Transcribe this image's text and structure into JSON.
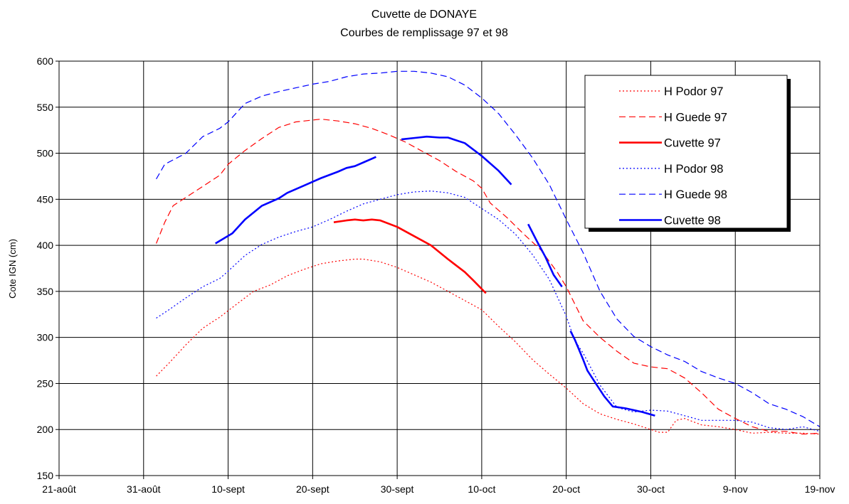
{
  "chart_data": {
    "type": "line",
    "title": "Cuvette de DONAYE",
    "subtitle": "Courbes de remplissage 97 et 98",
    "xlabel": "",
    "ylabel": "Cote IGN (cm)",
    "ylim": [
      150,
      600
    ],
    "yticks": [
      150,
      200,
      250,
      300,
      350,
      400,
      450,
      500,
      550,
      600
    ],
    "xlim": [
      0,
      90
    ],
    "xticks": [
      {
        "x": 0,
        "label": "21-août"
      },
      {
        "x": 10,
        "label": "31-août"
      },
      {
        "x": 20,
        "label": "10-sept"
      },
      {
        "x": 30,
        "label": "20-sept"
      },
      {
        "x": 40,
        "label": "30-sept"
      },
      {
        "x": 50,
        "label": "10-oct"
      },
      {
        "x": 60,
        "label": "20-oct"
      },
      {
        "x": 70,
        "label": "30-oct"
      },
      {
        "x": 80,
        "label": "9-nov"
      },
      {
        "x": 90,
        "label": "19-nov"
      }
    ],
    "grid": true,
    "legend_position": "top-right",
    "series": [
      {
        "name": "H Podor 97",
        "color": "#ff0000",
        "dash": "dotted",
        "width": 1.2,
        "points": [
          [
            11.5,
            258
          ],
          [
            13,
            272
          ],
          [
            15,
            292
          ],
          [
            17,
            310
          ],
          [
            19,
            322
          ],
          [
            21,
            336
          ],
          [
            23,
            350
          ],
          [
            25,
            357
          ],
          [
            27,
            367
          ],
          [
            29,
            374
          ],
          [
            31,
            380
          ],
          [
            33,
            383
          ],
          [
            35,
            385
          ],
          [
            36,
            385
          ],
          [
            38,
            382
          ],
          [
            40,
            376
          ],
          [
            42,
            368
          ],
          [
            44,
            360
          ],
          [
            46,
            350
          ],
          [
            48,
            340
          ],
          [
            50,
            330
          ],
          [
            52,
            312
          ],
          [
            54,
            295
          ],
          [
            56,
            276
          ],
          [
            58,
            260
          ],
          [
            60,
            245
          ],
          [
            62,
            228
          ],
          [
            64,
            217
          ],
          [
            66,
            211
          ],
          [
            68,
            206
          ],
          [
            70,
            200
          ],
          [
            71,
            197
          ],
          [
            72,
            197
          ],
          [
            73,
            210
          ],
          [
            74,
            212
          ],
          [
            76,
            205
          ],
          [
            78,
            203
          ],
          [
            80,
            200
          ],
          [
            82,
            196
          ],
          [
            84,
            197
          ],
          [
            86,
            196
          ],
          [
            88,
            196
          ],
          [
            90,
            195
          ]
        ]
      },
      {
        "name": "H Guede 97",
        "color": "#ff0000",
        "dash": "dashed",
        "width": 1.2,
        "points": [
          [
            11.5,
            402
          ],
          [
            12.5,
            425
          ],
          [
            13.5,
            443
          ],
          [
            15,
            452
          ],
          [
            17,
            464
          ],
          [
            19,
            476
          ],
          [
            20,
            488
          ],
          [
            22,
            503
          ],
          [
            24,
            516
          ],
          [
            26,
            528
          ],
          [
            28,
            534
          ],
          [
            30,
            536
          ],
          [
            31,
            537
          ],
          [
            33,
            535
          ],
          [
            35,
            532
          ],
          [
            37,
            527
          ],
          [
            39,
            520
          ],
          [
            41,
            512
          ],
          [
            43,
            502
          ],
          [
            45,
            492
          ],
          [
            47,
            480
          ],
          [
            49,
            470
          ],
          [
            50,
            462
          ],
          [
            51,
            446
          ],
          [
            53,
            430
          ],
          [
            55,
            412
          ],
          [
            57,
            395
          ],
          [
            59,
            370
          ],
          [
            60,
            355
          ],
          [
            62,
            318
          ],
          [
            64,
            300
          ],
          [
            66,
            285
          ],
          [
            68,
            272
          ],
          [
            70,
            268
          ],
          [
            72,
            266
          ],
          [
            74,
            256
          ],
          [
            76,
            240
          ],
          [
            78,
            222
          ],
          [
            80,
            212
          ],
          [
            82,
            203
          ],
          [
            84,
            198
          ],
          [
            86,
            198
          ],
          [
            88,
            195
          ],
          [
            90,
            196
          ]
        ]
      },
      {
        "name": "Cuvette 97",
        "color": "#ff0000",
        "dash": "solid",
        "width": 2.6,
        "points": [
          [
            32.5,
            425
          ],
          [
            34,
            427
          ],
          [
            35,
            428
          ],
          [
            36,
            427
          ],
          [
            37,
            428
          ],
          [
            38,
            427
          ],
          [
            40,
            420
          ],
          [
            42,
            410
          ],
          [
            44,
            400
          ],
          [
            46,
            385
          ],
          [
            48,
            371
          ],
          [
            49,
            362
          ],
          [
            50.5,
            348
          ]
        ]
      },
      {
        "name": "H Podor 98",
        "color": "#0000ff",
        "dash": "dotted",
        "width": 1.2,
        "points": [
          [
            11.5,
            321
          ],
          [
            13,
            330
          ],
          [
            15,
            343
          ],
          [
            17,
            355
          ],
          [
            19,
            364
          ],
          [
            20,
            372
          ],
          [
            22,
            389
          ],
          [
            24,
            401
          ],
          [
            26,
            409
          ],
          [
            28,
            415
          ],
          [
            30,
            420
          ],
          [
            32,
            428
          ],
          [
            34,
            437
          ],
          [
            36,
            445
          ],
          [
            38,
            450
          ],
          [
            40,
            455
          ],
          [
            42,
            458
          ],
          [
            44,
            459
          ],
          [
            46,
            457
          ],
          [
            48,
            452
          ],
          [
            50,
            440
          ],
          [
            52,
            428
          ],
          [
            54,
            412
          ],
          [
            56,
            390
          ],
          [
            58,
            363
          ],
          [
            60,
            323
          ],
          [
            61,
            297
          ],
          [
            62,
            283
          ],
          [
            64,
            248
          ],
          [
            66,
            224
          ],
          [
            68,
            219
          ],
          [
            70,
            221
          ],
          [
            72,
            220
          ],
          [
            74,
            215
          ],
          [
            76,
            210
          ],
          [
            78,
            210
          ],
          [
            80,
            210
          ],
          [
            82,
            208
          ],
          [
            84,
            202
          ],
          [
            86,
            200
          ],
          [
            88,
            203
          ],
          [
            90,
            198
          ]
        ]
      },
      {
        "name": "H Guede 98",
        "color": "#0000ff",
        "dash": "dashed",
        "width": 1.2,
        "points": [
          [
            11.5,
            472
          ],
          [
            12.5,
            488
          ],
          [
            15,
            500
          ],
          [
            17,
            518
          ],
          [
            19,
            527
          ],
          [
            20,
            534
          ],
          [
            22,
            554
          ],
          [
            24,
            562
          ],
          [
            26,
            567
          ],
          [
            28,
            571
          ],
          [
            30,
            575
          ],
          [
            32,
            578
          ],
          [
            34,
            583
          ],
          [
            36,
            586
          ],
          [
            38,
            587
          ],
          [
            40,
            589
          ],
          [
            42,
            589
          ],
          [
            44,
            587
          ],
          [
            46,
            583
          ],
          [
            48,
            574
          ],
          [
            50,
            560
          ],
          [
            52,
            543
          ],
          [
            54,
            520
          ],
          [
            56,
            495
          ],
          [
            58,
            466
          ],
          [
            60,
            428
          ],
          [
            62,
            392
          ],
          [
            64,
            350
          ],
          [
            66,
            320
          ],
          [
            68,
            301
          ],
          [
            70,
            290
          ],
          [
            72,
            281
          ],
          [
            74,
            274
          ],
          [
            76,
            263
          ],
          [
            78,
            256
          ],
          [
            80,
            250
          ],
          [
            82,
            240
          ],
          [
            84,
            228
          ],
          [
            86,
            222
          ],
          [
            88,
            214
          ],
          [
            90,
            203
          ]
        ]
      },
      {
        "name": "Cuvette 98",
        "color": "#0000ff",
        "dash": "solid",
        "width": 2.6,
        "segments": [
          [
            [
              18.5,
              402
            ],
            [
              20.5,
              413
            ],
            [
              22,
              428
            ],
            [
              24,
              443
            ],
            [
              26,
              451
            ],
            [
              27,
              457
            ],
            [
              29,
              465
            ],
            [
              31,
              473
            ],
            [
              33,
              480
            ],
            [
              34,
              484
            ],
            [
              35,
              486
            ],
            [
              36,
              490
            ],
            [
              37,
              494
            ],
            [
              37.5,
              496
            ]
          ],
          [
            [
              40.5,
              515
            ],
            [
              42.5,
              517
            ],
            [
              43.5,
              518
            ],
            [
              45,
              517
            ],
            [
              46,
              517
            ],
            [
              48,
              511
            ],
            [
              50,
              497
            ],
            [
              52,
              481
            ],
            [
              53.5,
              466
            ]
          ],
          [
            [
              55.5,
              423
            ],
            [
              56.5,
              405
            ],
            [
              57.5,
              388
            ],
            [
              58.5,
              368
            ],
            [
              59.5,
              355
            ]
          ],
          [
            [
              60.5,
              307
            ],
            [
              61,
              298
            ],
            [
              61.5,
              287
            ],
            [
              62,
              276
            ],
            [
              62.5,
              264
            ],
            [
              63.5,
              250
            ],
            [
              64.5,
              236
            ],
            [
              65.5,
              225
            ],
            [
              67,
              223
            ],
            [
              69,
              219
            ],
            [
              70.5,
              215
            ]
          ]
        ]
      }
    ]
  }
}
